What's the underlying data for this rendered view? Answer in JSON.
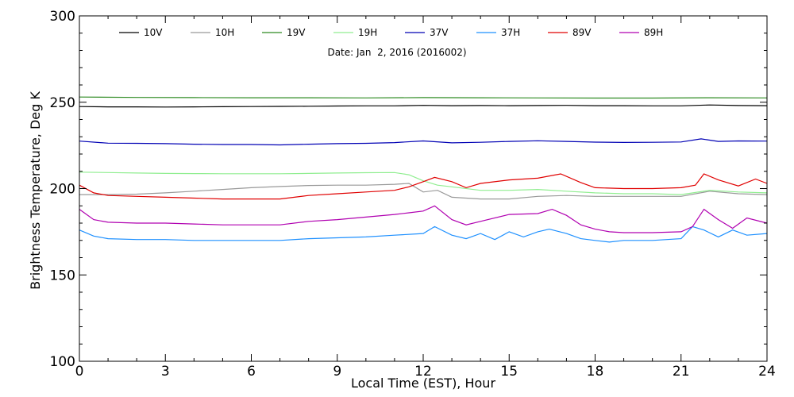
{
  "chart_data": {
    "type": "line",
    "title": "",
    "annotation": "Date: Jan  2, 2016 (2016002)",
    "xlabel": "Local Time (EST), Hour",
    "ylabel": "Brightness Temperature, Deg K",
    "xlim": [
      0,
      24
    ],
    "ylim": [
      100,
      300
    ],
    "xticks": [
      0,
      3,
      6,
      9,
      12,
      15,
      18,
      21,
      24
    ],
    "yticks": [
      100,
      150,
      200,
      250,
      300
    ],
    "grid": false,
    "legend_placement": "top",
    "series": [
      {
        "name": "10V",
        "color": "#000000",
        "x": [
          0,
          1,
          2,
          3,
          4,
          5,
          6,
          7,
          8,
          9,
          10,
          11,
          12,
          13,
          14,
          15,
          16,
          17,
          18,
          19,
          20,
          21,
          22,
          23,
          24
        ],
        "y": [
          247.5,
          247.3,
          247.3,
          247.2,
          247.3,
          247.4,
          247.5,
          247.6,
          247.7,
          247.8,
          247.9,
          247.9,
          248.2,
          248.0,
          248.1,
          248.0,
          248.1,
          248.2,
          248.0,
          248.0,
          247.9,
          247.9,
          248.4,
          248.1,
          248.0
        ]
      },
      {
        "name": "10H",
        "color": "#999999",
        "x": [
          0,
          1,
          2,
          3,
          4,
          5,
          6,
          7,
          8,
          9,
          10,
          11,
          11.5,
          12,
          12.5,
          13,
          14,
          15,
          16,
          17,
          18,
          19,
          20,
          21,
          22,
          23,
          24
        ],
        "y": [
          196.5,
          196.5,
          196.8,
          197.5,
          198.5,
          199.5,
          200.5,
          201.2,
          201.8,
          202,
          202,
          202.5,
          203,
          198,
          199,
          195,
          194,
          194,
          195.5,
          196,
          195.5,
          195.5,
          195.5,
          195.5,
          198.5,
          197,
          196.5
        ]
      },
      {
        "name": "19V",
        "color": "#2e8b22",
        "x": [
          0,
          2,
          4,
          6,
          8,
          10,
          12,
          14,
          16,
          18,
          20,
          22,
          24
        ],
        "y": [
          253,
          252.8,
          252.7,
          252.6,
          252.6,
          252.5,
          252.7,
          252.6,
          252.5,
          252.4,
          252.4,
          252.6,
          252.5
        ]
      },
      {
        "name": "19H",
        "color": "#90ee90",
        "x": [
          0,
          1,
          2,
          3,
          4,
          5,
          6,
          7,
          8,
          9,
          10,
          11,
          11.5,
          12,
          12.5,
          13,
          14,
          15,
          16,
          17,
          18,
          19,
          20,
          21,
          22,
          23,
          24
        ],
        "y": [
          209.5,
          209.3,
          209,
          208.8,
          208.7,
          208.6,
          208.6,
          208.6,
          208.8,
          209,
          209.2,
          209.3,
          208,
          204.5,
          202,
          201,
          199,
          199,
          199.5,
          198.5,
          197.5,
          197,
          197,
          196.5,
          199,
          198,
          197.5
        ]
      },
      {
        "name": "37V",
        "color": "#0000b4",
        "x": [
          0,
          1,
          2,
          3,
          4,
          5,
          6,
          7,
          8,
          9,
          10,
          11,
          12,
          13,
          14,
          15,
          16,
          17,
          18,
          19,
          20,
          21,
          21.7,
          22.3,
          23,
          24
        ],
        "y": [
          227.5,
          226.3,
          226.2,
          226,
          225.7,
          225.5,
          225.5,
          225.3,
          225.7,
          226,
          226.2,
          226.6,
          227.6,
          226.5,
          226.8,
          227.3,
          227.7,
          227.3,
          226.9,
          226.7,
          226.8,
          227,
          228.8,
          227.3,
          227.6,
          227.5
        ]
      },
      {
        "name": "37H",
        "color": "#1e90ff",
        "x": [
          0,
          0.5,
          1,
          2,
          3,
          4,
          5,
          6,
          7,
          8,
          9,
          10,
          11,
          12,
          12.4,
          13,
          13.5,
          14,
          14.5,
          15,
          15.5,
          16,
          16.4,
          17,
          17.5,
          18,
          18.5,
          19,
          20,
          21,
          21.4,
          21.8,
          22.3,
          22.8,
          23.3,
          24
        ],
        "y": [
          176,
          172.5,
          171,
          170.5,
          170.5,
          170,
          170,
          170,
          170,
          171,
          171.5,
          172,
          173,
          174,
          178,
          173,
          171,
          174,
          170.5,
          175,
          172,
          175,
          176.5,
          174,
          171,
          170,
          169,
          170,
          170,
          171,
          178,
          176,
          172,
          176,
          173,
          174
        ]
      },
      {
        "name": "89V",
        "color": "#e00000",
        "x": [
          0,
          0.5,
          1,
          2,
          3,
          4,
          5,
          6,
          7,
          8,
          9,
          10,
          11,
          11.5,
          12,
          12.4,
          13,
          13.5,
          14,
          15,
          16,
          16.8,
          17.5,
          18,
          19,
          20,
          21,
          21.5,
          21.8,
          22.3,
          23,
          23.6,
          24
        ],
        "y": [
          202,
          197.5,
          196,
          195.5,
          195,
          194.5,
          194,
          194,
          194,
          196,
          197,
          198,
          199,
          201,
          204,
          206.5,
          204,
          200.5,
          203,
          205,
          206,
          208.5,
          203.5,
          200.5,
          200,
          200,
          200.5,
          202,
          208.5,
          205,
          201.5,
          205.5,
          203
        ]
      },
      {
        "name": "89H",
        "color": "#b000b0",
        "x": [
          0,
          0.5,
          1,
          2,
          3,
          4,
          5,
          6,
          7,
          8,
          9,
          10,
          11,
          11.5,
          12,
          12.4,
          13,
          13.5,
          14,
          15,
          16,
          16.5,
          17,
          17.5,
          18,
          18.5,
          19,
          20,
          21,
          21.4,
          21.8,
          22.3,
          22.8,
          23.3,
          24
        ],
        "y": [
          188,
          182,
          180.5,
          180,
          180,
          179.5,
          179,
          179,
          179,
          181,
          182,
          183.5,
          185,
          186,
          187,
          190,
          182,
          179,
          181,
          185,
          185.5,
          188,
          184.5,
          179,
          176.5,
          175,
          174.5,
          174.5,
          175,
          178,
          188,
          182,
          177,
          183,
          180
        ]
      }
    ]
  }
}
